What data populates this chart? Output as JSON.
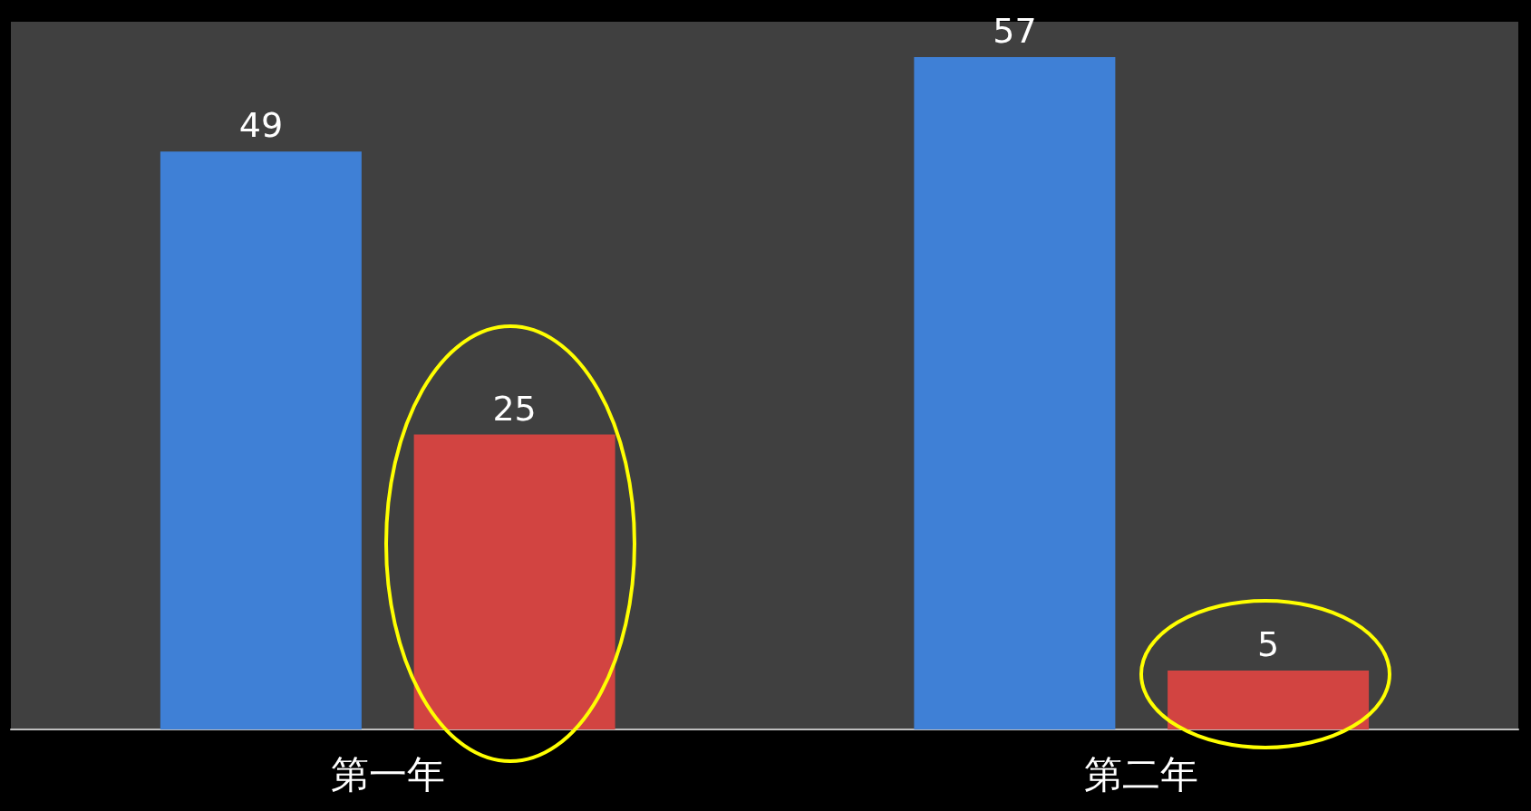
{
  "chart_data": {
    "type": "bar",
    "categories": [
      "第一年",
      "第二年"
    ],
    "series": [
      {
        "color": "#3f80d6",
        "values": [
          49,
          57
        ]
      },
      {
        "color": "#d24441",
        "values": [
          25,
          5
        ]
      }
    ],
    "data_labels": true,
    "grid": false
  }
}
